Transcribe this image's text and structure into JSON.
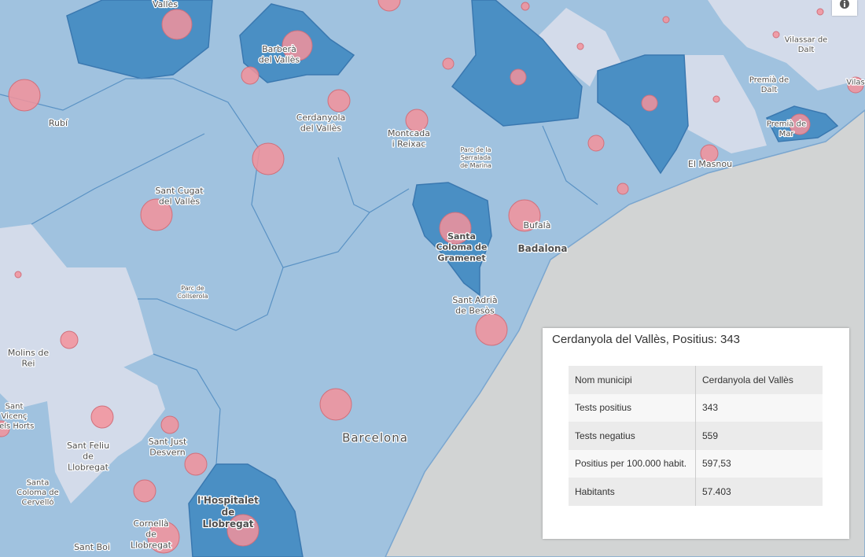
{
  "map": {
    "labels": [
      [
        "Vallès"
      ],
      [
        "Barberà",
        "del Vallès"
      ],
      [
        "Rubí"
      ],
      [
        "Cerdanyola",
        "del Vallès"
      ],
      [
        "Montcada",
        "i Reixac"
      ],
      [
        "Parc de la",
        "Serralada",
        "de Marina"
      ],
      [
        "Vilassar de",
        "Dalt"
      ],
      [
        "Premià de",
        "Dalt"
      ],
      [
        "Premià de",
        "Mar"
      ],
      [
        "Vilas"
      ],
      [
        "El Masnou"
      ],
      [
        "Sant Cugat",
        "del Vallès"
      ],
      [
        "Bufalà"
      ],
      [
        "Santa",
        "Coloma de",
        "Gramenet"
      ],
      [
        "Badalona"
      ],
      [
        "Parc de",
        "Collserola"
      ],
      [
        "Sant Adrià",
        "de Besòs"
      ],
      [
        "Molins de",
        "Rei"
      ],
      [
        "Sant",
        "Vicenç",
        "dels Horts"
      ],
      [
        "Sant Feliu",
        "de",
        "Llobregat"
      ],
      [
        "Sant Just",
        "Desvern"
      ],
      [
        "Barcelona"
      ],
      [
        "Santa",
        "Coloma de",
        "Cervelló"
      ],
      [
        "l'Hospitalet",
        "de",
        "Llobregat"
      ],
      [
        "Cornellà",
        "de",
        "Llobregat"
      ],
      [
        "Sant Boi"
      ]
    ]
  },
  "popup": {
    "title": "Cerdanyola del Vallès, Positius: 343",
    "rows": [
      [
        "Nom municipi",
        "Cerdanyola del Vallès"
      ],
      [
        "Tests positius",
        "343"
      ],
      [
        "Tests negatius",
        "559"
      ],
      [
        "Positius per 100.000 habit.",
        "597,53"
      ],
      [
        "Habitants",
        "57.403"
      ]
    ]
  }
}
